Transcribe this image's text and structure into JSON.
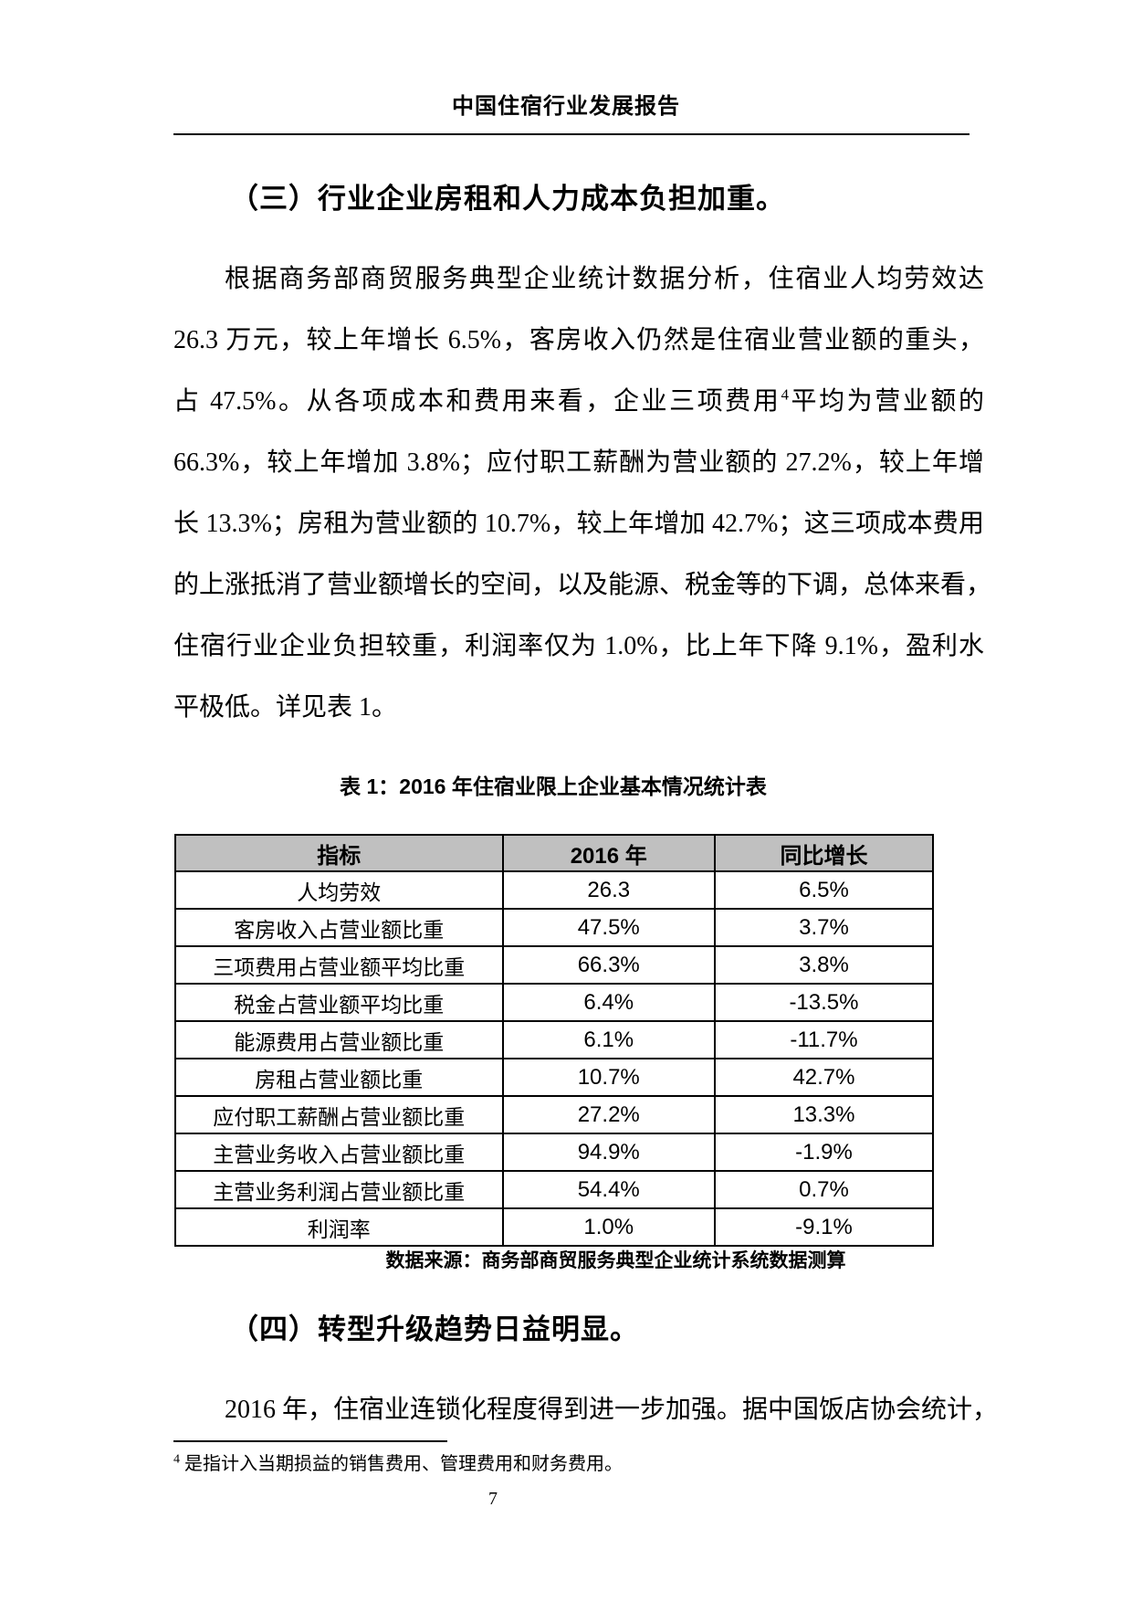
{
  "page": {
    "header_title": "中国住宿行业发展报告",
    "page_number": "7"
  },
  "section3": {
    "heading": "（三）行业企业房租和人力成本负担加重。",
    "lines": [
      "根据商务部商贸服务典型企业统计数据分析，住宿业人均劳效达",
      "26.3 万元，较上年增长 6.5%，客房收入仍然是住宿业营业额的重头，",
      {
        "pre": "占 47.5%。从各项成本和费用来看，企业三项费用",
        "sup": "4",
        "post": "平均为营业额的"
      },
      "66.3%，较上年增加 3.8%；应付职工薪酬为营业额的 27.2%，较上年增",
      "长 13.3%；房租为营业额的 10.7%，较上年增加 42.7%；这三项成本费用",
      "的上涨抵消了营业额增长的空间，以及能源、税金等的下调，总体来看，",
      "住宿行业企业负担较重，利润率仅为 1.0%，比上年下降 9.1%，盈利水",
      "平极低。详见表 1。"
    ]
  },
  "table": {
    "title": "表 1：2016 年住宿业限上企业基本情况统计表",
    "headers": [
      "指标",
      "2016 年",
      "同比增长"
    ],
    "rows": [
      [
        "人均劳效",
        "26.3",
        "6.5%"
      ],
      [
        "客房收入占营业额比重",
        "47.5%",
        "3.7%"
      ],
      [
        "三项费用占营业额平均比重",
        "66.3%",
        "3.8%"
      ],
      [
        "税金占营业额平均比重",
        "6.4%",
        "-13.5%"
      ],
      [
        "能源费用占营业额比重",
        "6.1%",
        "-11.7%"
      ],
      [
        "房租占营业额比重",
        "10.7%",
        "42.7%"
      ],
      [
        "应付职工薪酬占营业额比重",
        "27.2%",
        "13.3%"
      ],
      [
        "主营业务收入占营业额比重",
        "94.9%",
        "-1.9%"
      ],
      [
        "主营业务利润占营业额比重",
        "54.4%",
        "0.7%"
      ],
      [
        "利润率",
        "1.0%",
        "-9.1%"
      ]
    ],
    "source": "数据来源：商务部商贸服务典型企业统计系统数据测算"
  },
  "section4": {
    "heading": "（四）转型升级趋势日益明显。",
    "line": "2016 年，住宿业连锁化程度得到进一步加强。据中国饭店协会统计，"
  },
  "footnote": {
    "marker": "4",
    "text": " 是指计入当期损益的销售费用、管理费用和财务费用。"
  },
  "colors": {
    "table_header_bg": "#c0c0c0",
    "text": "#000000",
    "page_bg": "#ffffff"
  }
}
